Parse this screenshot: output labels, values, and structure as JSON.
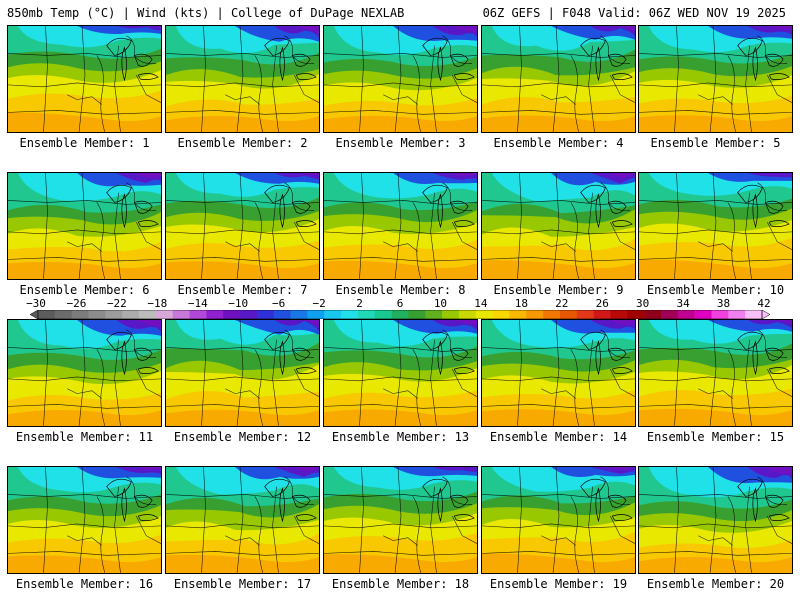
{
  "header": {
    "left": "850mb Temp (°C) | Wind (kts) | College of DuPage NEXLAB",
    "right": "06Z GEFS | F048 Valid: 06Z WED NOV 19 2025"
  },
  "members": [
    {
      "label": "Ensemble Member: 1"
    },
    {
      "label": "Ensemble Member: 2"
    },
    {
      "label": "Ensemble Member: 3"
    },
    {
      "label": "Ensemble Member: 4"
    },
    {
      "label": "Ensemble Member: 5"
    },
    {
      "label": "Ensemble Member: 6"
    },
    {
      "label": "Ensemble Member: 7"
    },
    {
      "label": "Ensemble Member: 8"
    },
    {
      "label": "Ensemble Member: 9"
    },
    {
      "label": "Ensemble Member: 10"
    },
    {
      "label": "Ensemble Member: 11"
    },
    {
      "label": "Ensemble Member: 12"
    },
    {
      "label": "Ensemble Member: 13"
    },
    {
      "label": "Ensemble Member: 14"
    },
    {
      "label": "Ensemble Member: 15"
    },
    {
      "label": "Ensemble Member: 16"
    },
    {
      "label": "Ensemble Member: 17"
    },
    {
      "label": "Ensemble Member: 18"
    },
    {
      "label": "Ensemble Member: 19"
    },
    {
      "label": "Ensemble Member: 20"
    }
  ],
  "colorbar": {
    "ticks": [
      "−30",
      "−26",
      "−22",
      "−18",
      "−14",
      "−10",
      "−6",
      "−2",
      "2",
      "6",
      "10",
      "14",
      "18",
      "22",
      "26",
      "30",
      "34",
      "38",
      "42"
    ],
    "colors": [
      "#5c5c5c",
      "#6c6c6c",
      "#7c7c7c",
      "#8c8c8c",
      "#9c9c9c",
      "#acacac",
      "#bcbcbc",
      "#d8a8d8",
      "#c878d8",
      "#b048d8",
      "#9020d0",
      "#7010c0",
      "#5818c8",
      "#3030d8",
      "#2050e0",
      "#1878e8",
      "#10a0f0",
      "#18c8f0",
      "#20e0e8",
      "#20d8b8",
      "#18c890",
      "#20b060",
      "#38a030",
      "#60b020",
      "#98c800",
      "#c8d800",
      "#e8e800",
      "#f8d800",
      "#f8b800",
      "#f89800",
      "#f07800",
      "#e85800",
      "#e03818",
      "#d01818",
      "#b80808",
      "#a00000",
      "#900018",
      "#a00058",
      "#c00090",
      "#e000c0",
      "#f040e0",
      "#f080f0",
      "#f8c0f8"
    ],
    "unit_colors": {
      "cold": "#3010c8",
      "cool": "#20d8f0",
      "mild": "#20b060",
      "warm": "#f8e800"
    }
  }
}
